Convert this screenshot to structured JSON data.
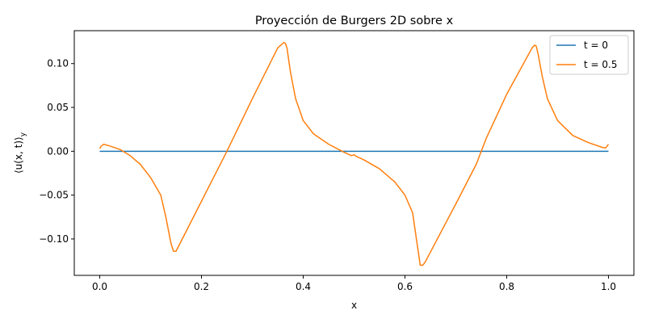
{
  "chart_data": {
    "type": "line",
    "title": "Proyección de Burgers 2D sobre x",
    "xlabel": "x",
    "ylabel": "⟨u(x, t)⟩",
    "ylabel_subscript": "y",
    "xlim": [
      -0.05,
      1.05
    ],
    "ylim": [
      -0.1415,
      0.1375
    ],
    "xticks": [
      0.0,
      0.2,
      0.4,
      0.6,
      0.8,
      1.0
    ],
    "xtick_labels": [
      "0.0",
      "0.2",
      "0.4",
      "0.6",
      "0.8",
      "1.0"
    ],
    "yticks": [
      -0.1,
      -0.05,
      0.0,
      0.05,
      0.1
    ],
    "ytick_labels": [
      "−0.10",
      "−0.05",
      "0.00",
      "0.05",
      "0.10"
    ],
    "grid": false,
    "legend_position": "top-right",
    "series": [
      {
        "name": "t = 0",
        "color": "#1f77b4",
        "x": [
          0.0,
          1.0
        ],
        "y": [
          0.0,
          0.0
        ]
      },
      {
        "name": "t = 0.5",
        "color": "#ff7f0e",
        "x": [
          0.0,
          0.003,
          0.008,
          0.02,
          0.04,
          0.06,
          0.08,
          0.1,
          0.12,
          0.13,
          0.135,
          0.14,
          0.145,
          0.15,
          0.25,
          0.3,
          0.35,
          0.362,
          0.365,
          0.368,
          0.375,
          0.385,
          0.4,
          0.42,
          0.45,
          0.48,
          0.495,
          0.5,
          0.505,
          0.52,
          0.55,
          0.58,
          0.6,
          0.615,
          0.625,
          0.63,
          0.635,
          0.64,
          0.7,
          0.74,
          0.75,
          0.76,
          0.8,
          0.85,
          0.855,
          0.858,
          0.862,
          0.87,
          0.88,
          0.9,
          0.93,
          0.96,
          0.99,
          0.995,
          1.0
        ],
        "y": [
          0.003,
          0.006,
          0.008,
          0.006,
          0.002,
          -0.005,
          -0.015,
          -0.03,
          -0.05,
          -0.075,
          -0.09,
          -0.105,
          -0.114,
          -0.114,
          0.0,
          0.06,
          0.118,
          0.124,
          0.123,
          0.118,
          0.09,
          0.06,
          0.035,
          0.02,
          0.008,
          -0.001,
          -0.005,
          -0.004,
          -0.006,
          -0.01,
          -0.02,
          -0.035,
          -0.05,
          -0.07,
          -0.11,
          -0.13,
          -0.13,
          -0.126,
          -0.06,
          -0.015,
          0.0,
          0.015,
          0.065,
          0.118,
          0.121,
          0.12,
          0.11,
          0.085,
          0.06,
          0.035,
          0.018,
          0.01,
          0.004,
          0.004,
          0.008
        ]
      }
    ]
  }
}
